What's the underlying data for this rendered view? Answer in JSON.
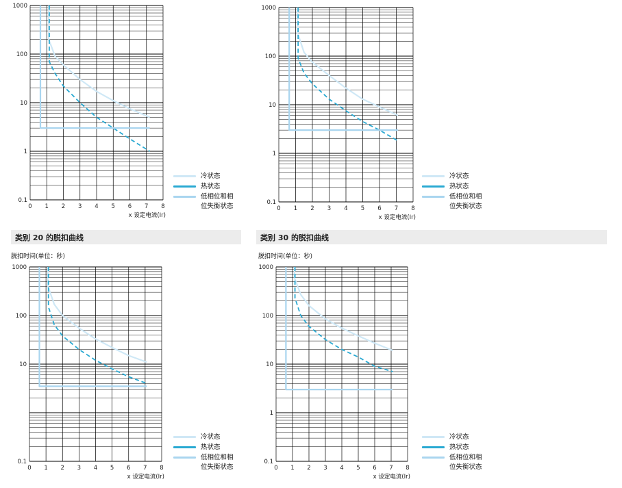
{
  "sections": [
    {
      "title": "",
      "y_caption": ""
    },
    {
      "title": "",
      "y_caption": ""
    },
    {
      "title": "类别 20 的脱扣曲线",
      "y_caption": "脱扣时间(单位：秒)"
    },
    {
      "title": "类别 30 的脱扣曲线",
      "y_caption": "脱扣时间(单位：秒)"
    }
  ],
  "legend": {
    "cold": "冷状态",
    "hot": "热状态",
    "phase_loss_line1": "低相位和相",
    "phase_loss_line2": "位失衡状态"
  },
  "colors": {
    "cold": "#cfe8f6",
    "hot": "#29a9d2",
    "phase_loss": "#a9d5ef",
    "grid": "#000000"
  },
  "chart_data": [
    {
      "type": "line",
      "xlabel": "x 设定电流(Ir)",
      "ylabel": "",
      "x_ticks": [
        0,
        1,
        2,
        3,
        4,
        5,
        6,
        7,
        8
      ],
      "y_ticks": [
        "0.1",
        "1",
        "10",
        "100",
        "1000"
      ],
      "xlim": [
        0,
        8
      ],
      "ylim": [
        0.1,
        1000
      ],
      "y_scale": "log",
      "series": [
        {
          "name": "冷状态",
          "style": "solid",
          "color": "#cfe8f6",
          "x": [
            1.12,
            1.12,
            1.5,
            2,
            3,
            4,
            5,
            6,
            7.2
          ],
          "y": [
            1000,
            200,
            90,
            60,
            30,
            17,
            11,
            7.5,
            5
          ]
        },
        {
          "name": "热状态",
          "style": "dashed",
          "color": "#29a9d2",
          "x": [
            1.15,
            1.15,
            1.5,
            2,
            3,
            4,
            5,
            6,
            7.2
          ],
          "y": [
            1000,
            70,
            40,
            22,
            10,
            5,
            3,
            1.8,
            1
          ]
        },
        {
          "name": "低相位和相位失衡状态",
          "style": "solid",
          "color": "#a9d5ef",
          "x": [
            0.62,
            0.62,
            7.2
          ],
          "y": [
            1000,
            3,
            3
          ]
        }
      ]
    },
    {
      "type": "line",
      "xlabel": "x 设定电流(Ir)",
      "ylabel": "",
      "x_ticks": [
        0,
        1,
        2,
        3,
        4,
        5,
        6,
        7,
        8
      ],
      "y_ticks": [
        "0.1",
        "1",
        "10",
        "100",
        "1000"
      ],
      "xlim": [
        0,
        8
      ],
      "ylim": [
        0.1,
        1000
      ],
      "y_scale": "log",
      "series": [
        {
          "name": "冷状态",
          "style": "solid",
          "color": "#cfe8f6",
          "x": [
            1.12,
            1.12,
            1.5,
            2,
            3,
            4,
            5,
            6,
            7.1
          ],
          "y": [
            1000,
            300,
            120,
            75,
            40,
            22,
            13,
            9,
            6
          ]
        },
        {
          "name": "热状态",
          "style": "dashed",
          "color": "#29a9d2",
          "x": [
            1.15,
            1.15,
            1.5,
            2,
            3,
            4,
            5,
            6,
            7.1
          ],
          "y": [
            1000,
            90,
            45,
            27,
            13,
            7.5,
            4.5,
            3,
            1.8
          ]
        },
        {
          "name": "低相位和相位失衡状态",
          "style": "solid",
          "color": "#a9d5ef",
          "x": [
            0.62,
            0.62,
            7.1
          ],
          "y": [
            1000,
            3,
            3
          ]
        }
      ]
    },
    {
      "type": "line",
      "xlabel": "x 设定电流(Ir)",
      "ylabel": "脱扣时间(单位：秒)",
      "x_ticks": [
        0,
        1,
        2,
        3,
        4,
        5,
        6,
        7,
        8
      ],
      "y_ticks": [
        "0.1",
        "",
        "10",
        "100",
        "1000"
      ],
      "xlim": [
        0,
        8
      ],
      "ylim": [
        0.1,
        1000
      ],
      "y_scale": "log",
      "series": [
        {
          "name": "冷状态",
          "style": "solid",
          "color": "#cfe8f6",
          "x": [
            1.12,
            1.12,
            1.5,
            2,
            3,
            4,
            5,
            6,
            7.1
          ],
          "y": [
            1000,
            400,
            170,
            100,
            55,
            33,
            22,
            15,
            11
          ]
        },
        {
          "name": "热状态",
          "style": "dashed",
          "color": "#29a9d2",
          "x": [
            1.15,
            1.15,
            1.5,
            2,
            3,
            4,
            5,
            6,
            7.1
          ],
          "y": [
            1000,
            150,
            65,
            38,
            20,
            12,
            8,
            5.5,
            4
          ]
        },
        {
          "name": "低相位和相位失衡状态",
          "style": "solid",
          "color": "#a9d5ef",
          "x": [
            0.6,
            0.6,
            7.1
          ],
          "y": [
            1000,
            3.5,
            3.5
          ]
        }
      ]
    },
    {
      "type": "line",
      "xlabel": "x 设定电流(Ir)",
      "ylabel": "脱扣时间(单位：秒)",
      "x_ticks": [
        0,
        1,
        2,
        3,
        4,
        5,
        6,
        7,
        8
      ],
      "y_ticks": [
        "0.1",
        "1",
        "10",
        "100",
        "1000"
      ],
      "xlim": [
        0,
        8
      ],
      "ylim": [
        0.1,
        1000
      ],
      "y_scale": "log",
      "series": [
        {
          "name": "冷状态",
          "style": "solid",
          "color": "#cfe8f6",
          "x": [
            1.12,
            1.12,
            1.5,
            2,
            3,
            4,
            5,
            6,
            7.1
          ],
          "y": [
            1000,
            600,
            270,
            160,
            85,
            55,
            38,
            27,
            19
          ]
        },
        {
          "name": "热状态",
          "style": "dashed",
          "color": "#29a9d2",
          "x": [
            1.15,
            1.15,
            1.5,
            2,
            3,
            4,
            5,
            6,
            7.1
          ],
          "y": [
            1000,
            230,
            100,
            60,
            32,
            20,
            14,
            9,
            7
          ]
        },
        {
          "name": "低相位和相位失衡状态",
          "style": "solid",
          "color": "#a9d5ef",
          "x": [
            0.6,
            0.6,
            7.1
          ],
          "y": [
            1000,
            3,
            3
          ]
        }
      ]
    }
  ]
}
